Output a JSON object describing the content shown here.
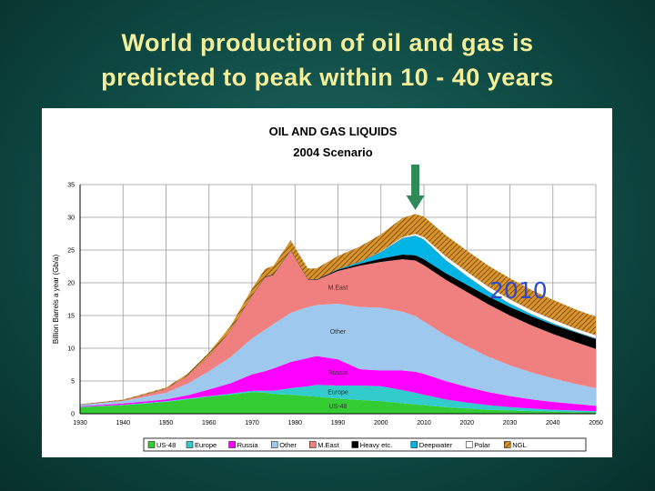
{
  "slide": {
    "title_line1": "World production of oil and gas is",
    "title_line2": "predicted to peak within 10 - 40 years"
  },
  "annotation": {
    "year_label": "2010",
    "arrow_color": "#2e8b57",
    "label_color": "#2f49c9"
  },
  "chart_data": {
    "type": "area",
    "stacked": true,
    "title": "OIL AND GAS LIQUIDS",
    "subtitle": "2004 Scenario",
    "xlabel": "",
    "ylabel": "Billion Barrels a year (Gb/a)",
    "xlim": [
      1930,
      2050
    ],
    "ylim": [
      0,
      35
    ],
    "grid": true,
    "x_ticks": [
      "1930",
      "1940",
      "1950",
      "1960",
      "1970",
      "1980",
      "1990",
      "2000",
      "2010",
      "2020",
      "2030",
      "2040",
      "2050"
    ],
    "y_ticks": [
      "0",
      "5",
      "10",
      "15",
      "20",
      "25",
      "30",
      "35"
    ],
    "legend_position": "bottom",
    "x": [
      1930,
      1940,
      1950,
      1955,
      1960,
      1965,
      1970,
      1973,
      1975,
      1979,
      1983,
      1985,
      1990,
      1995,
      2000,
      2005,
      2008,
      2010,
      2015,
      2020,
      2025,
      2030,
      2035,
      2040,
      2045,
      2050
    ],
    "series": [
      {
        "name": "US-48",
        "color": "#33cc33",
        "values": [
          1.0,
          1.3,
          1.8,
          2.2,
          2.6,
          2.9,
          3.3,
          3.2,
          3.0,
          2.9,
          2.7,
          2.6,
          2.3,
          2.1,
          1.9,
          1.6,
          1.4,
          1.3,
          1.0,
          0.8,
          0.6,
          0.5,
          0.4,
          0.3,
          0.25,
          0.2
        ]
      },
      {
        "name": "Europe",
        "color": "#33cccc",
        "values": [
          0.05,
          0.05,
          0.1,
          0.1,
          0.1,
          0.15,
          0.2,
          0.3,
          0.5,
          1.0,
          1.5,
          1.8,
          2.0,
          2.2,
          2.3,
          2.0,
          1.8,
          1.6,
          1.2,
          0.9,
          0.7,
          0.5,
          0.4,
          0.3,
          0.25,
          0.2
        ]
      },
      {
        "name": "Russia",
        "color": "#ff00ff",
        "values": [
          0.1,
          0.2,
          0.3,
          0.5,
          1.0,
          1.6,
          2.5,
          3.0,
          3.4,
          4.0,
          4.3,
          4.4,
          4.0,
          2.5,
          2.4,
          3.0,
          3.2,
          3.2,
          2.8,
          2.4,
          2.0,
          1.7,
          1.4,
          1.2,
          1.0,
          0.8
        ]
      },
      {
        "name": "Other",
        "color": "#9ec8ee",
        "values": [
          0.2,
          0.4,
          1.0,
          1.8,
          2.8,
          4.0,
          5.5,
          6.3,
          6.8,
          7.5,
          7.8,
          7.8,
          8.5,
          9.5,
          9.6,
          9.0,
          8.5,
          8.0,
          7.0,
          6.2,
          5.4,
          4.7,
          4.1,
          3.6,
          3.1,
          2.7
        ]
      },
      {
        "name": "M.East",
        "color": "#f08080",
        "values": [
          0.05,
          0.1,
          0.6,
          1.2,
          2.3,
          4.0,
          6.5,
          8.0,
          7.5,
          9.5,
          4.2,
          3.8,
          5.0,
          6.3,
          7.0,
          8.0,
          8.5,
          8.6,
          8.5,
          8.3,
          8.0,
          7.6,
          7.2,
          6.8,
          6.4,
          6.0
        ]
      },
      {
        "name": "Heavy etc.",
        "color": "#000000",
        "values": [
          0.0,
          0.0,
          0.0,
          0.0,
          0.05,
          0.05,
          0.1,
          0.1,
          0.1,
          0.1,
          0.1,
          0.1,
          0.2,
          0.3,
          0.5,
          0.7,
          0.8,
          0.9,
          1.0,
          1.1,
          1.2,
          1.3,
          1.4,
          1.4,
          1.5,
          1.5
        ]
      },
      {
        "name": "Deepwater",
        "color": "#00b4e6",
        "values": [
          0.0,
          0.0,
          0.0,
          0.0,
          0.0,
          0.0,
          0.0,
          0.0,
          0.0,
          0.0,
          0.0,
          0.0,
          0.1,
          0.3,
          1.0,
          2.5,
          3.0,
          3.0,
          2.0,
          1.3,
          0.8,
          0.5,
          0.3,
          0.2,
          0.1,
          0.1
        ]
      },
      {
        "name": "Polar",
        "color": "#ffffff",
        "values": [
          0.0,
          0.0,
          0.0,
          0.0,
          0.0,
          0.0,
          0.0,
          0.0,
          0.0,
          0.0,
          0.0,
          0.0,
          0.0,
          0.0,
          0.1,
          0.2,
          0.3,
          0.4,
          0.6,
          0.7,
          0.7,
          0.7,
          0.6,
          0.6,
          0.5,
          0.5
        ]
      },
      {
        "name": "NGL",
        "color": "#d9952b",
        "values": [
          0.05,
          0.1,
          0.2,
          0.3,
          0.5,
          0.7,
          1.0,
          1.2,
          1.3,
          1.5,
          1.6,
          1.7,
          2.0,
          2.3,
          2.6,
          2.9,
          3.0,
          3.1,
          3.2,
          3.2,
          3.2,
          3.2,
          3.1,
          3.0,
          2.9,
          2.8
        ]
      }
    ],
    "region_labels": [
      {
        "text": "M.East",
        "series": "M.East",
        "x": 1990
      },
      {
        "text": "Other",
        "series": "Other",
        "x": 1990
      },
      {
        "text": "Russia",
        "series": "Russia",
        "x": 1990
      },
      {
        "text": "Europe",
        "series": "Europe",
        "x": 1990
      },
      {
        "text": "US-48",
        "series": "US-48",
        "x": 1990
      }
    ]
  }
}
